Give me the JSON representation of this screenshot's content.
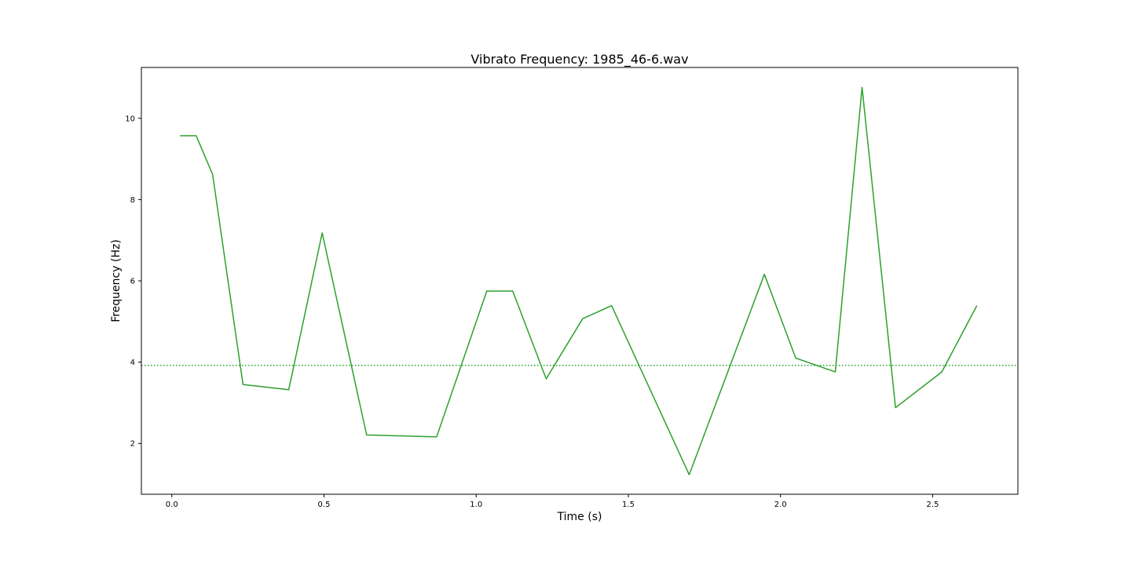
{
  "chart_data": {
    "type": "line",
    "title": "Vibrato Frequency: 1985_46-6.wav",
    "xlabel": "Time (s)",
    "ylabel": "Frequency (Hz)",
    "xlim": [
      -0.1,
      2.78
    ],
    "ylim": [
      0.75,
      11.25
    ],
    "xticks": [
      0.0,
      0.5,
      1.0,
      1.5,
      2.0,
      2.5
    ],
    "xtick_labels": [
      "0.0",
      "0.5",
      "1.0",
      "1.5",
      "2.0",
      "2.5"
    ],
    "yticks": [
      2,
      4,
      6,
      8,
      10
    ],
    "ytick_labels": [
      "2",
      "4",
      "6",
      "8",
      "10"
    ],
    "grid": false,
    "series": [
      {
        "style": "solid",
        "color": "#2ca02c",
        "x": [
          0.027,
          0.08,
          0.134,
          0.234,
          0.384,
          0.494,
          0.64,
          0.87,
          1.035,
          1.12,
          1.23,
          1.35,
          1.445,
          1.7,
          1.947,
          2.05,
          2.18,
          2.268,
          2.378,
          2.53,
          2.645
        ],
        "y": [
          9.57,
          9.57,
          8.62,
          3.45,
          3.32,
          7.18,
          2.21,
          2.16,
          5.75,
          5.75,
          3.59,
          5.07,
          5.39,
          1.23,
          6.16,
          4.1,
          3.76,
          10.76,
          2.88,
          3.76,
          5.39
        ]
      },
      {
        "style": "dotted",
        "color": "#2ca02c",
        "y_constant": 3.92
      }
    ]
  }
}
